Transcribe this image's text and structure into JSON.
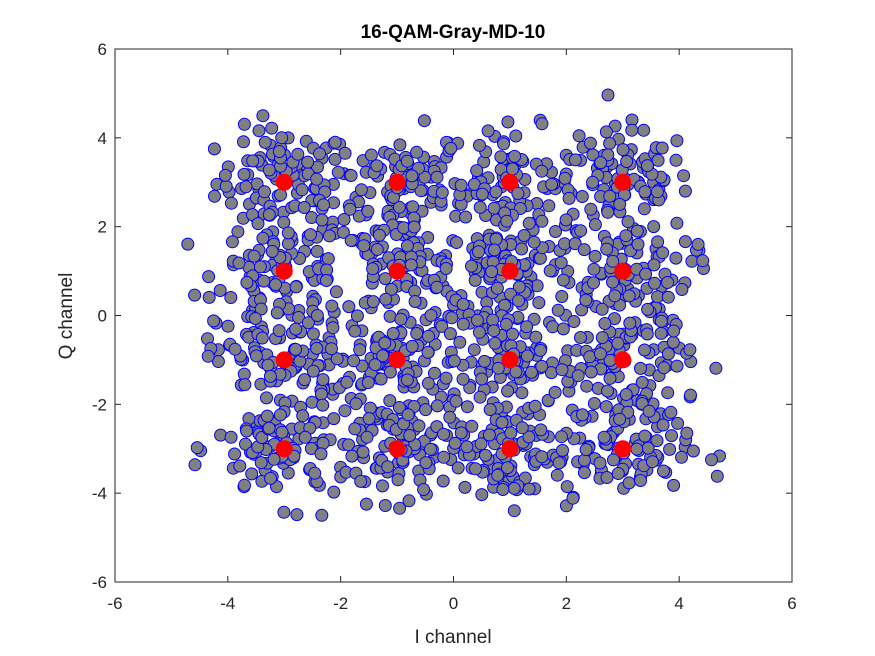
{
  "chart_data": {
    "type": "scatter",
    "title": "16-QAM-Gray-MD-10",
    "xlabel": "I channel",
    "ylabel": "Q channel",
    "xlim": [
      -6,
      6
    ],
    "ylim": [
      -6,
      6
    ],
    "xticks": [
      "-6",
      "-4",
      "-2",
      "0",
      "2",
      "4",
      "6"
    ],
    "yticks": [
      "-6",
      "-4",
      "-2",
      "0",
      "2",
      "4",
      "6"
    ],
    "grid": false,
    "series": [
      {
        "role": "received-symbols",
        "marker_fill": "#808080",
        "marker_edge": "#0000ff",
        "noise_std": 0.6,
        "samples_per_point": 100
      },
      {
        "role": "constellation-points",
        "marker_fill": "#ff0000",
        "x": [
          -3,
          -1,
          1,
          3,
          -3,
          -1,
          1,
          3,
          -3,
          -1,
          1,
          3,
          -3,
          -1,
          1,
          3
        ],
        "y": [
          3,
          3,
          3,
          3,
          1,
          1,
          1,
          1,
          -1,
          -1,
          -1,
          -1,
          -3,
          -3,
          -3,
          -3
        ]
      }
    ]
  }
}
